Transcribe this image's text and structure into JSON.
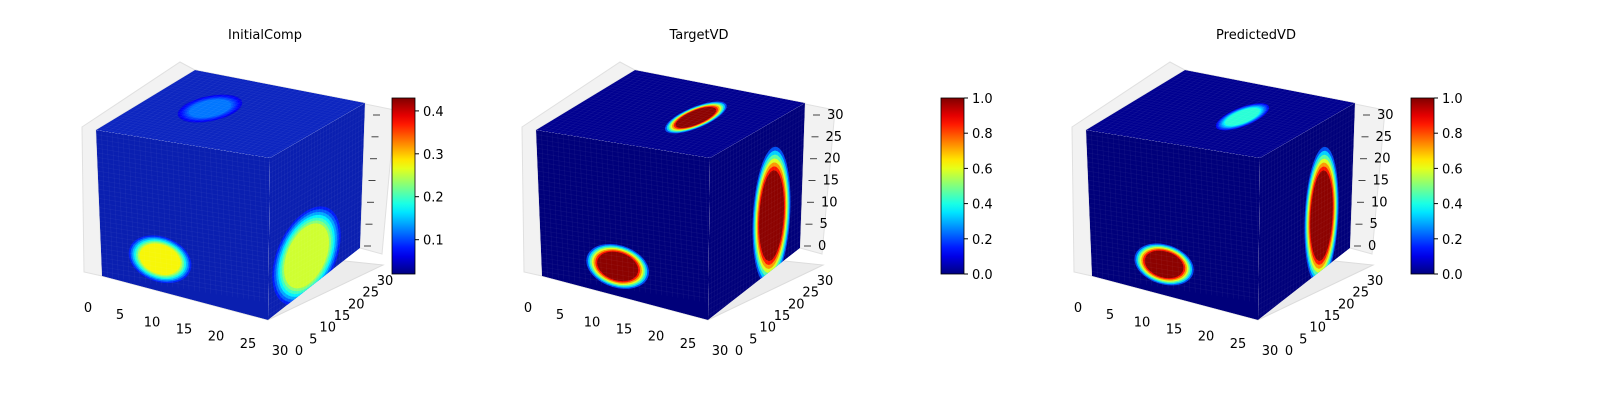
{
  "chart_data": [
    {
      "type": "heatmap",
      "title": "InitialComp",
      "xticks": [
        "0",
        "5",
        "10",
        "15",
        "20",
        "25",
        "30"
      ],
      "yticks": [
        "0",
        "5",
        "10",
        "15",
        "20",
        "25",
        "30"
      ],
      "zticks": [
        "",
        "",
        "",
        "",
        "",
        "",
        ""
      ],
      "colorbar": {
        "cmap": "jet",
        "min": 0.02,
        "max": 0.43,
        "ticks": [
          0.1,
          0.2,
          0.3,
          0.4
        ],
        "tick_labels": [
          "0.1",
          "0.2",
          "0.3",
          "0.4"
        ]
      },
      "blobs": {
        "front": [
          {
            "u": 0.34,
            "v": 0.82,
            "ru": 0.18,
            "rv": 0.16,
            "val": 0.28
          }
        ],
        "right": [
          {
            "u": 0.4,
            "v": 0.74,
            "ru": 0.36,
            "rv": 0.28,
            "val": 0.26
          }
        ],
        "top": [
          {
            "u": 0.35,
            "v": 0.45,
            "ru": 0.14,
            "rv": 0.22,
            "val": 0.12
          }
        ]
      }
    },
    {
      "type": "heatmap",
      "title": "TargetVD",
      "xticks": [
        "0",
        "5",
        "10",
        "15",
        "20",
        "25",
        "30"
      ],
      "yticks": [
        "0",
        "5",
        "10",
        "15",
        "20",
        "25",
        "30"
      ],
      "zticks": [
        "0",
        "5",
        "10",
        "15",
        "20",
        "25",
        "30"
      ],
      "colorbar": {
        "cmap": "jet",
        "min": 0.0,
        "max": 1.0,
        "ticks": [
          0.0,
          0.2,
          0.4,
          0.6,
          0.8,
          1.0
        ],
        "tick_labels": [
          "0.0",
          "0.2",
          "0.4",
          "0.6",
          "0.8",
          "1.0"
        ]
      },
      "blobs": {
        "front": [
          {
            "u": 0.44,
            "v": 0.85,
            "ru": 0.18,
            "rv": 0.15,
            "val": 1.0
          }
        ],
        "right": [
          {
            "u": 0.66,
            "v": 0.58,
            "ru": 0.2,
            "rv": 0.42,
            "val": 1.0
          }
        ],
        "top": [
          {
            "u": 0.62,
            "v": 0.45,
            "ru": 0.1,
            "rv": 0.26,
            "val": 1.0
          }
        ]
      }
    },
    {
      "type": "heatmap",
      "title": "PredictedVD",
      "xticks": [
        "0",
        "5",
        "10",
        "15",
        "20",
        "25",
        "30"
      ],
      "yticks": [
        "0",
        "5",
        "10",
        "15",
        "20",
        "25",
        "30"
      ],
      "zticks": [
        "0",
        "5",
        "10",
        "15",
        "20",
        "25",
        "30"
      ],
      "colorbar": {
        "cmap": "jet",
        "min": 0.0,
        "max": 1.0,
        "ticks": [
          0.0,
          0.2,
          0.4,
          0.6,
          0.8,
          1.0
        ],
        "tick_labels": [
          "0.0",
          "0.2",
          "0.4",
          "0.6",
          "0.8",
          "1.0"
        ]
      },
      "blobs": {
        "front": [
          {
            "u": 0.42,
            "v": 0.84,
            "ru": 0.17,
            "rv": 0.14,
            "val": 1.0
          }
        ],
        "right": [
          {
            "u": 0.66,
            "v": 0.58,
            "ru": 0.18,
            "rv": 0.42,
            "val": 1.0
          }
        ],
        "top": [
          {
            "u": 0.6,
            "v": 0.45,
            "ru": 0.09,
            "rv": 0.22,
            "val": 0.42
          }
        ]
      }
    }
  ]
}
